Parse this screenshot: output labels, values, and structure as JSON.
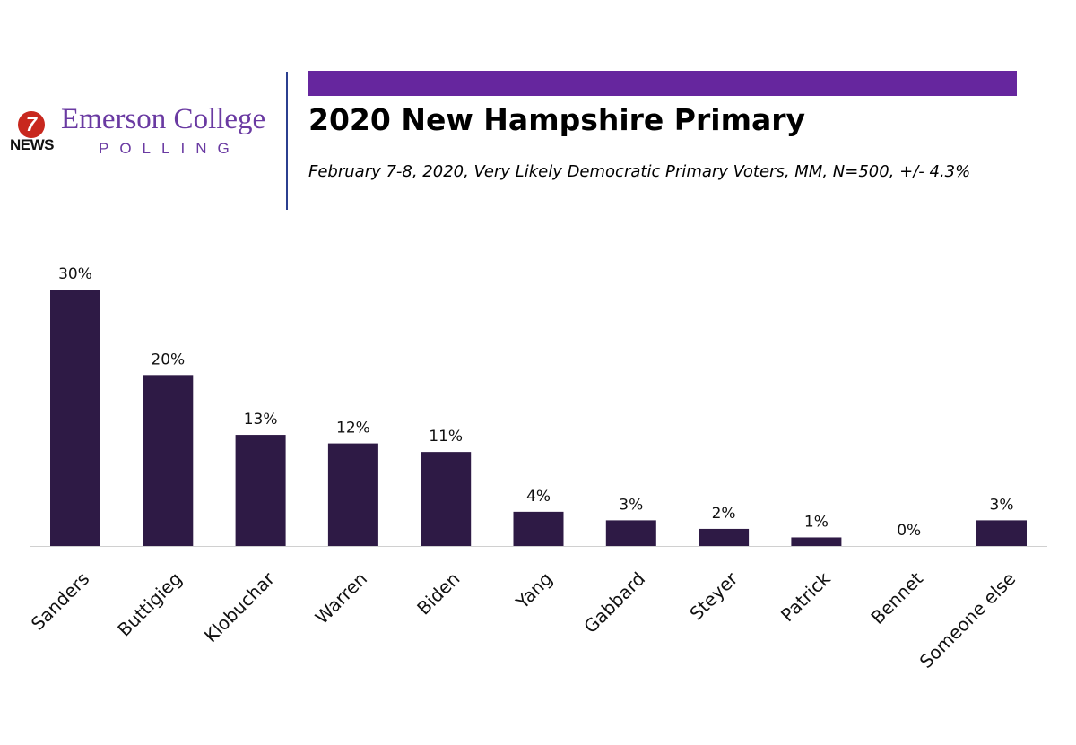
{
  "logo": {
    "channel_number": "7",
    "channel_label": "NEWS",
    "org_name": "Emerson College",
    "org_sub": "POLLING"
  },
  "colors": {
    "header_bar": "#66269e",
    "bar_fill": "#2e1a45",
    "divider": "#2b3f8f",
    "logo_purple": "#6a3aa2",
    "logo_red": "#c8281e"
  },
  "chart_data": {
    "type": "bar",
    "title": "2020 New Hampshire Primary",
    "subtitle": "February 7-8, 2020, Very Likely Democratic Primary Voters, MM,  N=500, +/-  4.3%",
    "categories": [
      "Sanders",
      "Buttigieg",
      "Klobuchar",
      "Warren",
      "Biden",
      "Yang",
      "Gabbard",
      "Steyer",
      "Patrick",
      "Bennet",
      "Someone else"
    ],
    "values": [
      30,
      20,
      13,
      12,
      11,
      4,
      3,
      2,
      1,
      0,
      3
    ],
    "data_labels": [
      "30%",
      "20%",
      "13%",
      "12%",
      "11%",
      "4%",
      "3%",
      "2%",
      "1%",
      "0%",
      "3%"
    ],
    "ylim": [
      0,
      30
    ],
    "grid": false,
    "legend": "none",
    "xlabel": "",
    "ylabel": ""
  }
}
